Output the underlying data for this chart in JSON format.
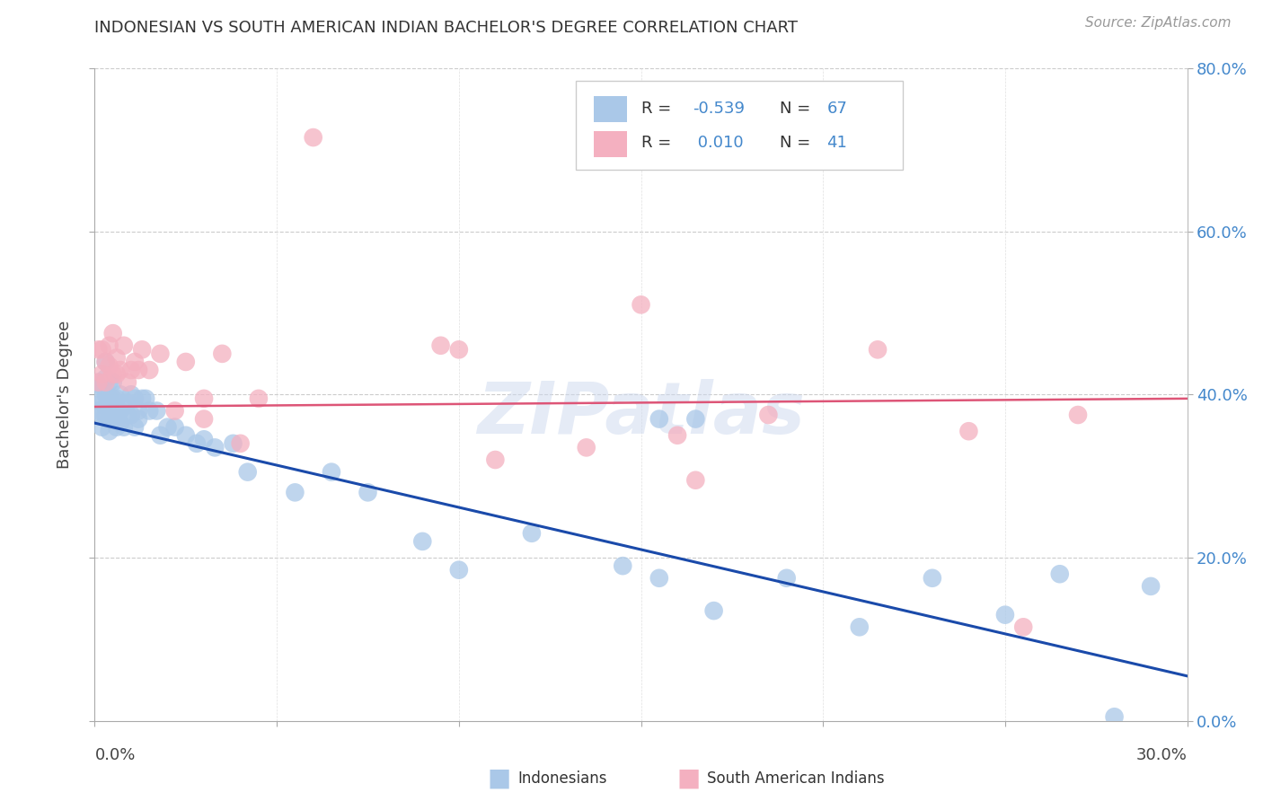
{
  "title": "INDONESIAN VS SOUTH AMERICAN INDIAN BACHELOR'S DEGREE CORRELATION CHART",
  "source": "Source: ZipAtlas.com",
  "ylabel": "Bachelor's Degree",
  "watermark": "ZIPatlas",
  "indonesian_color": "#aac8e8",
  "south_american_color": "#f4b0c0",
  "line_blue": "#1a4aaa",
  "line_pink": "#dd5577",
  "xlim": [
    0.0,
    0.3
  ],
  "ylim": [
    0.0,
    0.8
  ],
  "yticks": [
    0.0,
    0.2,
    0.4,
    0.6,
    0.8
  ],
  "ytick_labels": [
    "0.0%",
    "20.0%",
    "40.0%",
    "60.0%",
    "80.0%"
  ],
  "r_indonesian": "-0.539",
  "n_indonesian": "67",
  "r_sa": "0.010",
  "n_sa": "41",
  "indonesian_x": [
    0.001,
    0.001,
    0.001,
    0.002,
    0.002,
    0.002,
    0.002,
    0.003,
    0.003,
    0.003,
    0.003,
    0.003,
    0.004,
    0.004,
    0.004,
    0.004,
    0.005,
    0.005,
    0.005,
    0.005,
    0.006,
    0.006,
    0.006,
    0.007,
    0.007,
    0.007,
    0.008,
    0.008,
    0.009,
    0.009,
    0.01,
    0.01,
    0.011,
    0.011,
    0.012,
    0.012,
    0.013,
    0.014,
    0.015,
    0.017,
    0.018,
    0.02,
    0.022,
    0.025,
    0.028,
    0.03,
    0.033,
    0.038,
    0.042,
    0.055,
    0.065,
    0.075,
    0.09,
    0.1,
    0.12,
    0.145,
    0.155,
    0.17,
    0.19,
    0.21,
    0.23,
    0.25,
    0.265,
    0.28,
    0.155,
    0.165,
    0.29
  ],
  "indonesian_y": [
    0.395,
    0.38,
    0.415,
    0.39,
    0.41,
    0.375,
    0.36,
    0.4,
    0.385,
    0.42,
    0.44,
    0.375,
    0.395,
    0.37,
    0.355,
    0.415,
    0.395,
    0.38,
    0.415,
    0.37,
    0.395,
    0.38,
    0.36,
    0.4,
    0.38,
    0.365,
    0.385,
    0.36,
    0.375,
    0.39,
    0.4,
    0.375,
    0.395,
    0.36,
    0.38,
    0.37,
    0.395,
    0.395,
    0.38,
    0.38,
    0.35,
    0.36,
    0.36,
    0.35,
    0.34,
    0.345,
    0.335,
    0.34,
    0.305,
    0.28,
    0.305,
    0.28,
    0.22,
    0.185,
    0.23,
    0.19,
    0.175,
    0.135,
    0.175,
    0.115,
    0.175,
    0.13,
    0.18,
    0.005,
    0.37,
    0.37,
    0.165
  ],
  "south_american_x": [
    0.001,
    0.001,
    0.002,
    0.002,
    0.003,
    0.003,
    0.004,
    0.004,
    0.005,
    0.005,
    0.006,
    0.006,
    0.007,
    0.008,
    0.009,
    0.01,
    0.011,
    0.012,
    0.013,
    0.015,
    0.018,
    0.022,
    0.025,
    0.03,
    0.035,
    0.04,
    0.045,
    0.06,
    0.095,
    0.11,
    0.135,
    0.15,
    0.165,
    0.185,
    0.215,
    0.16,
    0.03,
    0.24,
    0.255,
    0.27,
    0.1
  ],
  "south_american_y": [
    0.415,
    0.455,
    0.455,
    0.425,
    0.415,
    0.44,
    0.435,
    0.46,
    0.475,
    0.425,
    0.445,
    0.425,
    0.43,
    0.46,
    0.415,
    0.43,
    0.44,
    0.43,
    0.455,
    0.43,
    0.45,
    0.38,
    0.44,
    0.395,
    0.45,
    0.34,
    0.395,
    0.715,
    0.46,
    0.32,
    0.335,
    0.51,
    0.295,
    0.375,
    0.455,
    0.35,
    0.37,
    0.355,
    0.115,
    0.375,
    0.455
  ]
}
